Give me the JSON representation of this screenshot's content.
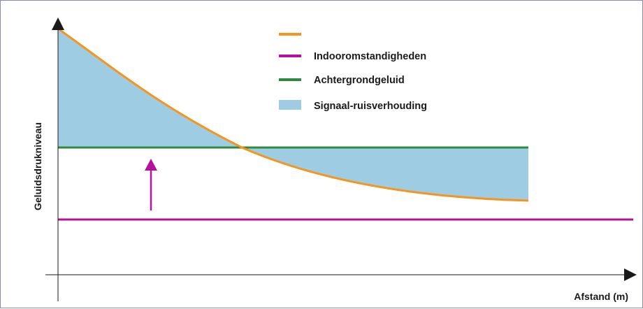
{
  "diagram": {
    "y_axis_label": "Geluidsdrukniveau",
    "x_axis_label": "Afstand (m)",
    "legend": [
      {
        "label": "",
        "color": "#f7941d",
        "kind": "line"
      },
      {
        "label": "Indooromstandigheden",
        "color": "#b5119a",
        "kind": "line"
      },
      {
        "label": "Achtergrondgeluid",
        "color": "#2e8b3e",
        "kind": "line"
      },
      {
        "label": "Signaal-ruisverhouding",
        "color": "#9ecde3",
        "kind": "area"
      }
    ],
    "colors": {
      "signal_curve": "#f7941d",
      "indoor_line": "#b5119a",
      "background_noise_line": "#2e8b3e",
      "snr_area": "#9ecde3",
      "axis": "#1a1a1a",
      "arrow": "#b5119a"
    }
  }
}
